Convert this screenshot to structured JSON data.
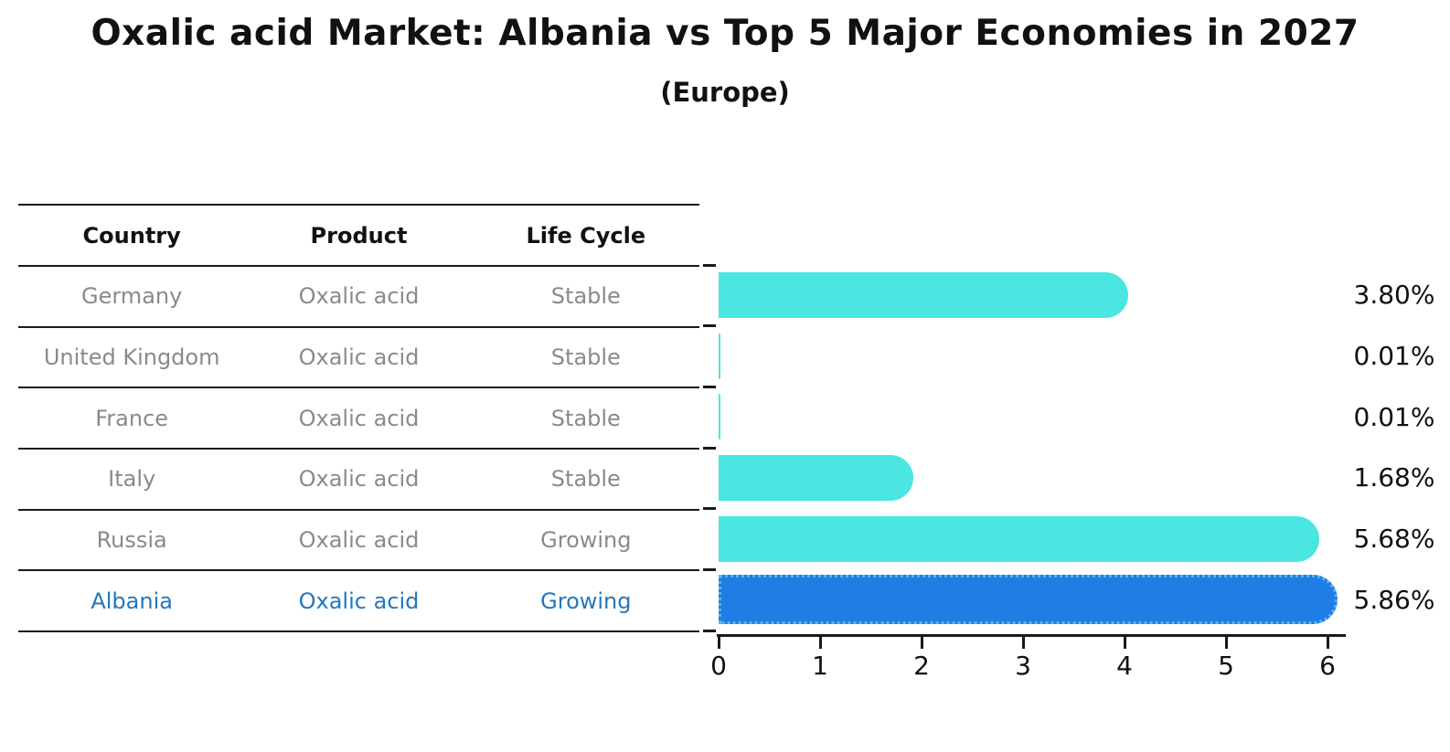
{
  "title": "Oxalic acid Market: Albania vs Top 5 Major Economies in 2027",
  "subtitle": "(Europe)",
  "table": {
    "headers": [
      "Country",
      "Product",
      "Life Cycle"
    ],
    "rows": [
      {
        "country": "Germany",
        "product": "Oxalic acid",
        "life_cycle": "Stable",
        "highlight": false
      },
      {
        "country": "United Kingdom",
        "product": "Oxalic acid",
        "life_cycle": "Stable",
        "highlight": false
      },
      {
        "country": "France",
        "product": "Oxalic acid",
        "life_cycle": "Stable",
        "highlight": false
      },
      {
        "country": "Italy",
        "product": "Oxalic acid",
        "life_cycle": "Stable",
        "highlight": false
      },
      {
        "country": "Russia",
        "product": "Oxalic acid",
        "life_cycle": "Growing",
        "highlight": false
      },
      {
        "country": "Albania",
        "product": "Oxalic acid",
        "life_cycle": "Growing",
        "highlight": true
      }
    ]
  },
  "chart_data": {
    "type": "bar",
    "orientation": "horizontal",
    "title": "Oxalic acid Market: Albania vs Top 5 Major Economies in 2027 (Europe)",
    "categories": [
      "Germany",
      "United Kingdom",
      "France",
      "Italy",
      "Russia",
      "Albania"
    ],
    "values": [
      3.8,
      0.01,
      0.01,
      1.68,
      5.68,
      5.86
    ],
    "value_labels": [
      "3.80%",
      "0.01%",
      "0.01%",
      "1.68%",
      "5.68%",
      "5.86%"
    ],
    "x_ticks": [
      "0",
      "1",
      "2",
      "3",
      "4",
      "5",
      "6"
    ],
    "xlim": [
      0,
      6
    ],
    "grid": false,
    "legend": "none",
    "highlight_index": 5,
    "colors": {
      "bar": "#4ae6e1",
      "highlight_bar": "#1e7ee4",
      "highlight_border": "#5fb0f0",
      "highlight_text": "#2577bd",
      "row_text": "#8a8a8a",
      "axis_text": "#111111"
    }
  }
}
